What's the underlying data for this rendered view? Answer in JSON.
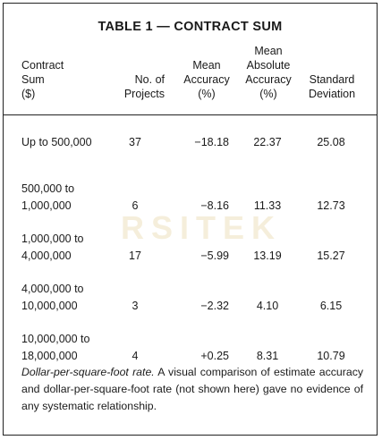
{
  "title": "TABLE 1 — CONTRACT SUM",
  "columns": {
    "contract_sum": "Contract\nSum\n($)",
    "num_projects": "No. of\nProjects",
    "mean_accuracy": "Mean\nAccuracy\n(%)",
    "mean_abs_accuracy": "Mean\nAbsolute\nAccuracy\n(%)",
    "std_dev": "Standard\nDeviation"
  },
  "rows": [
    {
      "sum": "Up to 500,000",
      "projects": "37",
      "mean": "−18.18",
      "abs": "22.37",
      "sd": "25.08"
    },
    {
      "sum": "500,000 to\n1,000,000",
      "projects": "6",
      "mean": "−8.16",
      "abs": "11.33",
      "sd": "12.73"
    },
    {
      "sum": "1,000,000 to\n4,000,000",
      "projects": "17",
      "mean": "−5.99",
      "abs": "13.19",
      "sd": "15.27"
    },
    {
      "sum": "4,000,000 to\n10,000,000",
      "projects": "3",
      "mean": "−2.32",
      "abs": "4.10",
      "sd": "6.15"
    },
    {
      "sum": "10,000,000 to\n18,000,000",
      "projects": "4",
      "mean": "+0.25",
      "abs": "8.31",
      "sd": "10.79"
    }
  ],
  "note": {
    "lead": "Dollar-per-square-foot rate.",
    "text": " A visual comparison of estimate accuracy and dollar-per-square-foot rate (not shown here) gave no evidence of any systematic relationship."
  },
  "watermark": "RSITEK"
}
